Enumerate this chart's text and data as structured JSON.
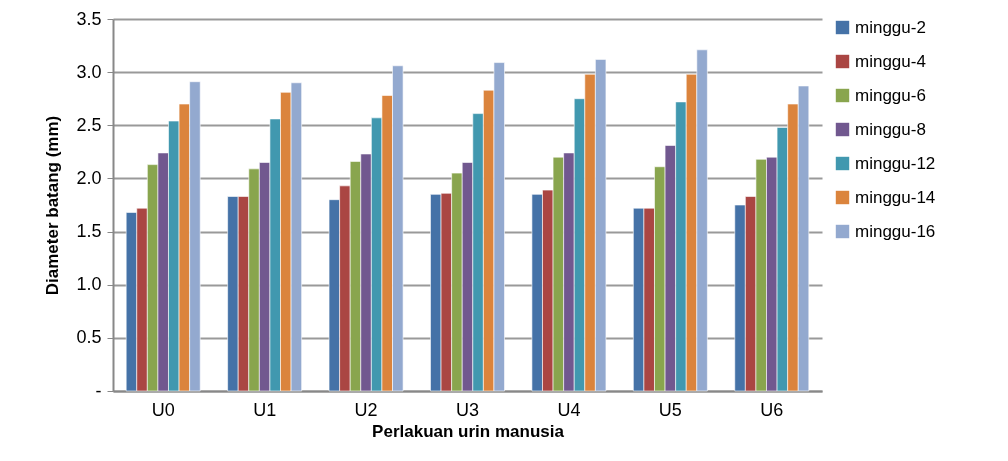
{
  "chart_data": {
    "type": "bar",
    "xlabel": "Perlakuan urin manusia",
    "ylabel": "Diameter batang (mm)",
    "categories": [
      "U0",
      "U1",
      "U2",
      "U3",
      "U4",
      "U5",
      "U6"
    ],
    "series": [
      {
        "name": "minggu-2",
        "color": "#4572a7",
        "values": [
          1.68,
          1.83,
          1.8,
          1.85,
          1.85,
          1.72,
          1.75
        ]
      },
      {
        "name": "minggu-4",
        "color": "#aa4643",
        "values": [
          1.72,
          1.83,
          1.93,
          1.86,
          1.89,
          1.72,
          1.83
        ]
      },
      {
        "name": "minggu-6",
        "color": "#89a54e",
        "values": [
          2.13,
          2.09,
          2.16,
          2.05,
          2.2,
          2.11,
          2.18
        ]
      },
      {
        "name": "minggu-8",
        "color": "#71588f",
        "values": [
          2.24,
          2.15,
          2.23,
          2.15,
          2.24,
          2.31,
          2.2
        ]
      },
      {
        "name": "minggu-12",
        "color": "#4198af",
        "values": [
          2.54,
          2.56,
          2.57,
          2.61,
          2.75,
          2.72,
          2.48
        ]
      },
      {
        "name": "minggu-14",
        "color": "#db843d",
        "values": [
          2.7,
          2.81,
          2.78,
          2.83,
          2.98,
          2.98,
          2.7
        ]
      },
      {
        "name": "minggu-16",
        "color": "#93a9cf",
        "values": [
          2.91,
          2.9,
          3.06,
          3.09,
          3.12,
          3.21,
          2.87
        ]
      }
    ],
    "ylim": [
      0,
      3.5
    ],
    "yticks": [
      {
        "value": 0,
        "label": "-"
      },
      0.5,
      {
        "value": 1,
        "label": "1.0"
      },
      1.5,
      {
        "value": 2,
        "label": "2.0"
      },
      2.5,
      {
        "value": 3,
        "label": "3.0"
      },
      3.5
    ],
    "grid": "y",
    "legend": "right"
  }
}
